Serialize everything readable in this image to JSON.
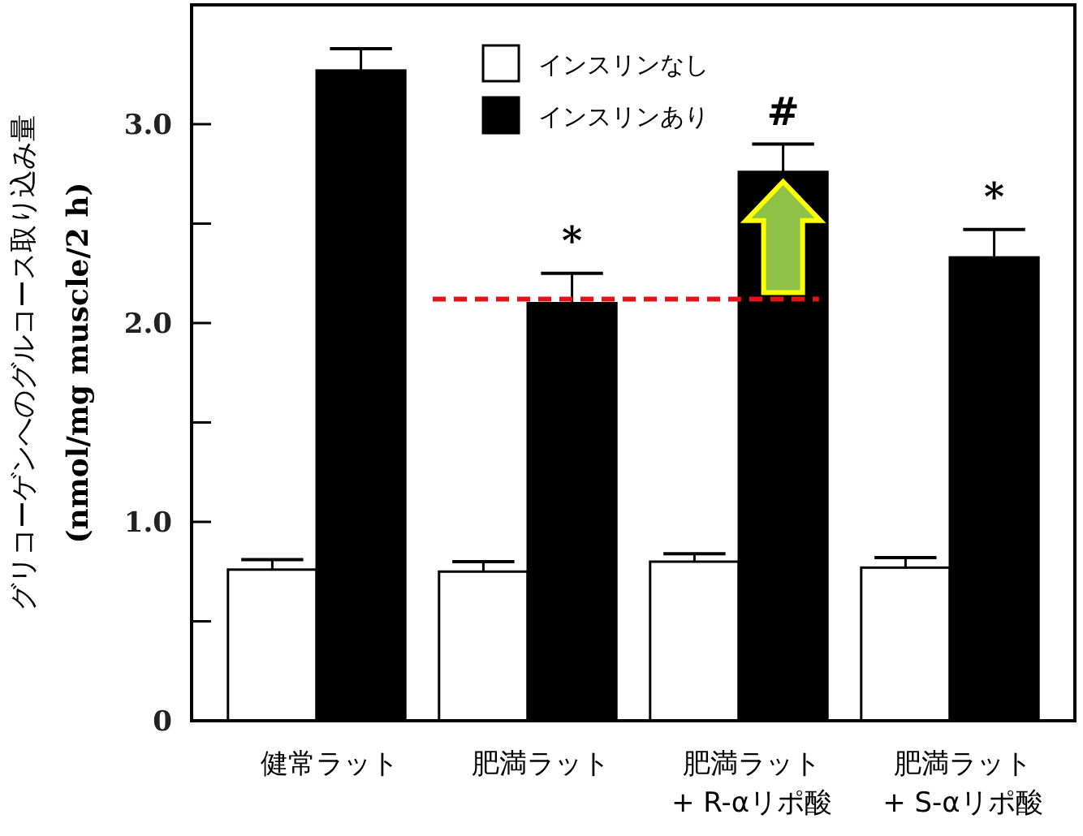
{
  "chart_data": {
    "type": "bar",
    "ylabel": "グリコーゲンへのグルコース取り込み量\n(nmol/mg muscle/2 h)",
    "categories": [
      "健常ラット",
      "肥満ラット",
      "肥満ラット\n+ R-αリポ酸",
      "肥満ラット\n+ S-αリポ酸"
    ],
    "series": [
      {
        "name": "インスリンなし",
        "color": "#ffffff",
        "values": [
          0.76,
          0.75,
          0.8,
          0.77
        ],
        "errors": [
          [
            0.76,
            0.81
          ],
          [
            0.75,
            0.8
          ],
          [
            0.8,
            0.84
          ],
          [
            0.77,
            0.82
          ]
        ]
      },
      {
        "name": "インスリンあり",
        "color": "#000000",
        "values": [
          3.27,
          2.1,
          2.76,
          2.33
        ],
        "errors": [
          [
            3.27,
            3.38
          ],
          [
            2.1,
            2.25
          ],
          [
            2.76,
            2.9
          ],
          [
            2.33,
            2.47
          ]
        ]
      }
    ],
    "ylim": [
      0,
      3.6
    ],
    "yticks": [
      0,
      {
        "value": 0.5,
        "label": null
      },
      {
        "value": 1,
        "label": "1.0"
      },
      {
        "value": 1.5,
        "label": null
      },
      {
        "value": 2,
        "label": "2.0"
      },
      {
        "value": 2.5,
        "label": null
      },
      {
        "value": 3,
        "label": "3.0"
      }
    ],
    "ref_lines": [
      {
        "axis": "y",
        "value": 2.12,
        "color": "#e8101a",
        "line_style": "dashed"
      }
    ],
    "annotations": [
      {
        "text": "*",
        "x": "肥満ラット",
        "y": 2.25
      },
      {
        "text": "#",
        "x": "肥満ラット\n+ R-αリポ酸",
        "y": 2.9
      },
      {
        "text": "*",
        "x": "肥満ラット\n+ S-αリポ酸",
        "y": 2.47
      }
    ],
    "legend": "top",
    "grid": false
  }
}
